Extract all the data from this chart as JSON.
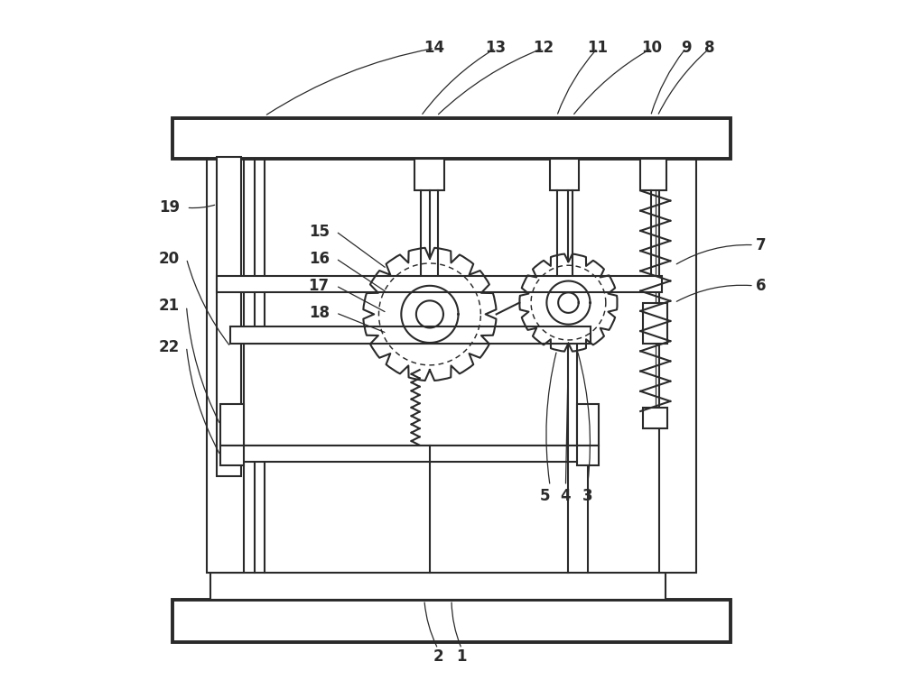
{
  "bg_color": "#ffffff",
  "line_color": "#2a2a2a",
  "fig_width": 10.0,
  "fig_height": 7.54,
  "lw": 1.5,
  "lw_thick": 2.8
}
